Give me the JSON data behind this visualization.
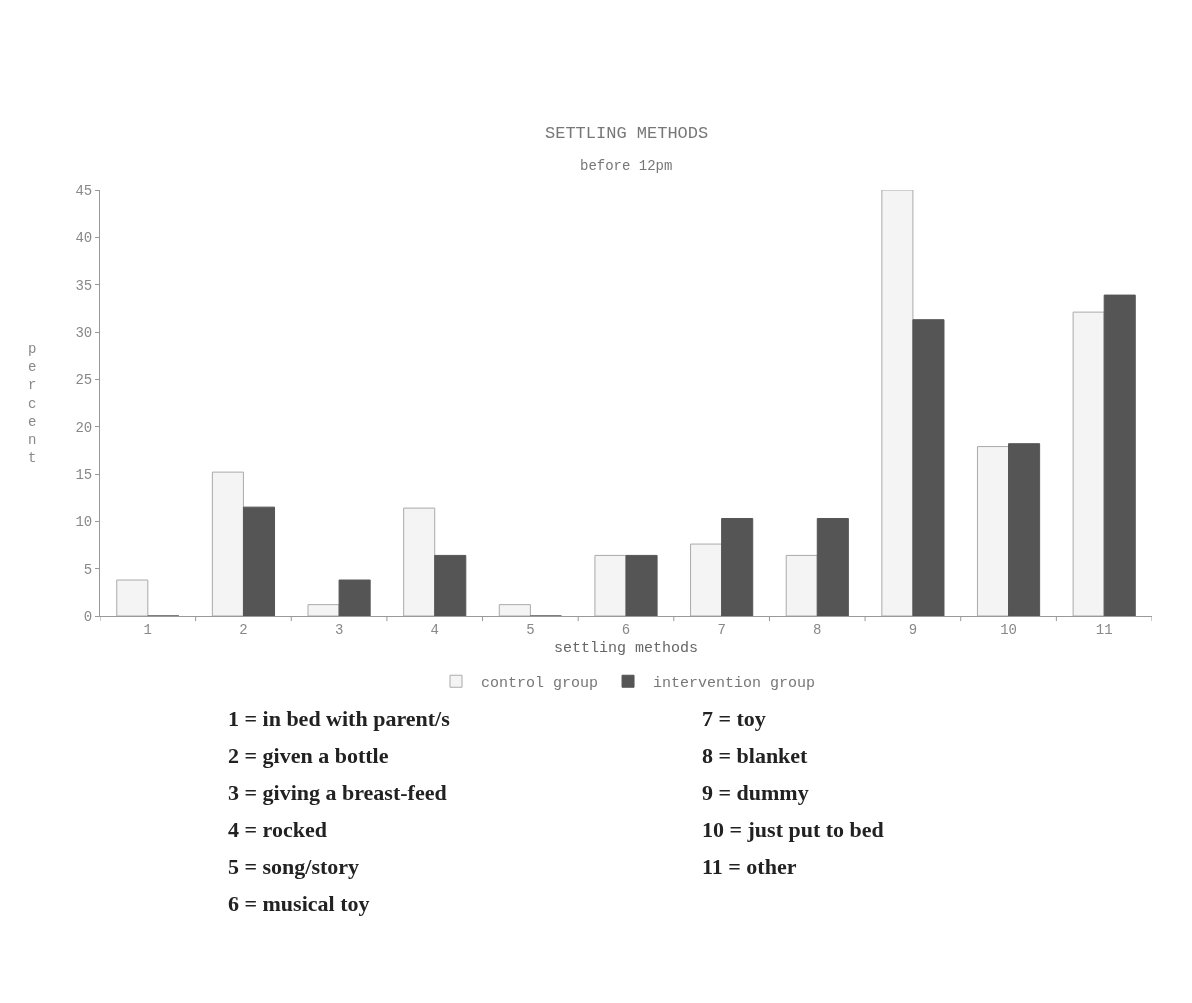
{
  "chart_data": {
    "type": "bar",
    "title": "SETTLING METHODS",
    "subtitle": "before 12pm",
    "xlabel": "settling methods",
    "ylabel": "percent",
    "categories": [
      "1",
      "2",
      "3",
      "4",
      "5",
      "6",
      "7",
      "8",
      "9",
      "10",
      "11"
    ],
    "series": [
      {
        "name": "control group",
        "color": "#f4f4f4",
        "values": [
          3.8,
          15.2,
          1.2,
          11.4,
          1.2,
          6.4,
          7.6,
          6.4,
          45,
          17.9,
          32.1
        ]
      },
      {
        "name": "intervention group",
        "color": "#555555",
        "values": [
          0,
          11.5,
          3.8,
          6.4,
          0,
          6.4,
          10.3,
          10.3,
          31.3,
          18.2,
          33.9
        ]
      }
    ],
    "ylim": [
      0,
      45
    ],
    "yticks": [
      0,
      5,
      10,
      15,
      20,
      25,
      30,
      35,
      40,
      45
    ],
    "legend": "bottom",
    "annotations": [
      "1 = in bed with parent/s",
      "2 = given a bottle",
      "3 = giving a breast-feed",
      "4 = rocked",
      "5 = song/story",
      "6 = musical toy",
      "7 = toy",
      "8 = blanket",
      "9 = dummy",
      "10 = just put to bed",
      "11 = other"
    ]
  }
}
